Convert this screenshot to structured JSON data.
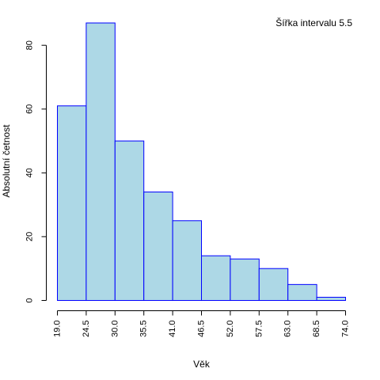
{
  "chart_data": {
    "type": "histogram",
    "title": "",
    "annotation": "Šířka intervalu 5.5",
    "xlabel": "Věk",
    "ylabel": "Absolutní četnost",
    "bin_edges": [
      19.0,
      24.5,
      30.0,
      35.5,
      41.0,
      46.5,
      52.0,
      57.5,
      63.0,
      68.5,
      74.0
    ],
    "x_tick_labels": [
      "19.0",
      "24.5",
      "30.0",
      "35.5",
      "41.0",
      "46.5",
      "52.0",
      "57.5",
      "63.0",
      "68.5",
      "74.0"
    ],
    "values": [
      61,
      87,
      50,
      34,
      25,
      14,
      13,
      10,
      5,
      1
    ],
    "y_ticks": [
      0,
      20,
      40,
      60,
      80
    ],
    "y_tick_labels": [
      "0",
      "20",
      "40",
      "60",
      "80"
    ],
    "xlim": [
      19.0,
      74.0
    ],
    "ylim": [
      0,
      87
    ],
    "grid": false,
    "colors": {
      "bar_fill": "#add8e6",
      "bar_stroke": "#0000ff"
    }
  }
}
